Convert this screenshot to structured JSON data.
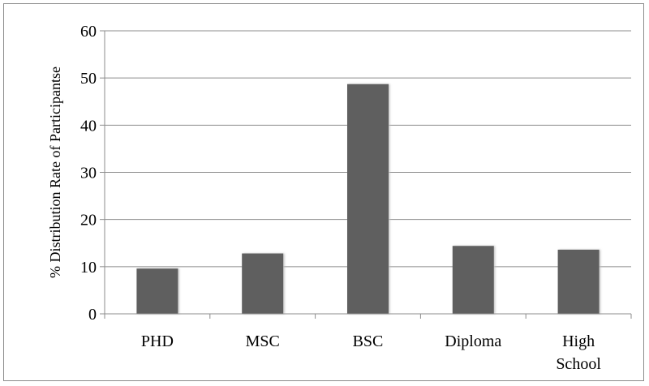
{
  "chart_data": {
    "type": "bar",
    "title": "",
    "xlabel": "",
    "ylabel": "% Distribution Rate of Participantse",
    "categories": [
      [
        "PHD"
      ],
      [
        "MSC"
      ],
      [
        "BSC"
      ],
      [
        "Diploma"
      ],
      [
        "High",
        "School"
      ]
    ],
    "values": [
      9.6,
      12.8,
      48.7,
      14.4,
      13.6
    ],
    "ylim": [
      0,
      60
    ],
    "yticks": [
      0,
      10,
      20,
      30,
      40,
      50,
      60
    ],
    "grid": true,
    "legend": "none",
    "colors": {
      "bar": "#5e5e5e",
      "grid": "#8c8c8c",
      "axis": "#8c8c8c"
    }
  }
}
